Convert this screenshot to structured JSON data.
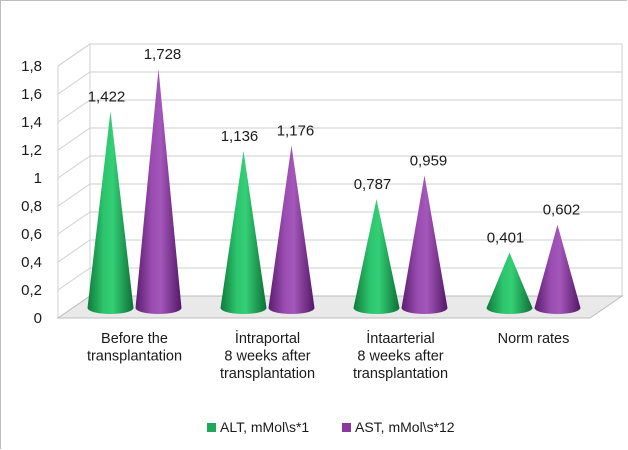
{
  "chart_data": {
    "type": "bar",
    "style": "3d-cone",
    "categories": [
      [
        "Before the",
        "transplantation"
      ],
      [
        "İntraportal",
        "8 weeks after",
        "transplantation"
      ],
      [
        "İntaarterial",
        "8 weeks after",
        "transplantation"
      ],
      [
        "Norm rates"
      ]
    ],
    "series": [
      {
        "name": "ALT, mMol\\s*1",
        "color": "#1fa85a",
        "values": [
          1.422,
          1.136,
          0.787,
          0.401
        ],
        "labels": [
          "1,422",
          "1,136",
          "0,787",
          "0,401"
        ]
      },
      {
        "name": "AST, mMol\\s*12",
        "color": "#8a3a9e",
        "values": [
          1.728,
          1.176,
          0.959,
          0.602
        ],
        "labels": [
          "1,728",
          "1,176",
          "0,959",
          "0,602"
        ]
      }
    ],
    "ylim": [
      0,
      1.8
    ],
    "yticks": [
      0,
      0.2,
      0.4,
      0.6,
      0.8,
      1,
      1.2,
      1.4,
      1.6,
      1.8
    ],
    "ytick_labels": [
      "0",
      "0,2",
      "0,4",
      "0,6",
      "0,8",
      "1",
      "1,2",
      "1,4",
      "1,6",
      "1,8"
    ],
    "grid": true,
    "legend_position": "bottom"
  }
}
